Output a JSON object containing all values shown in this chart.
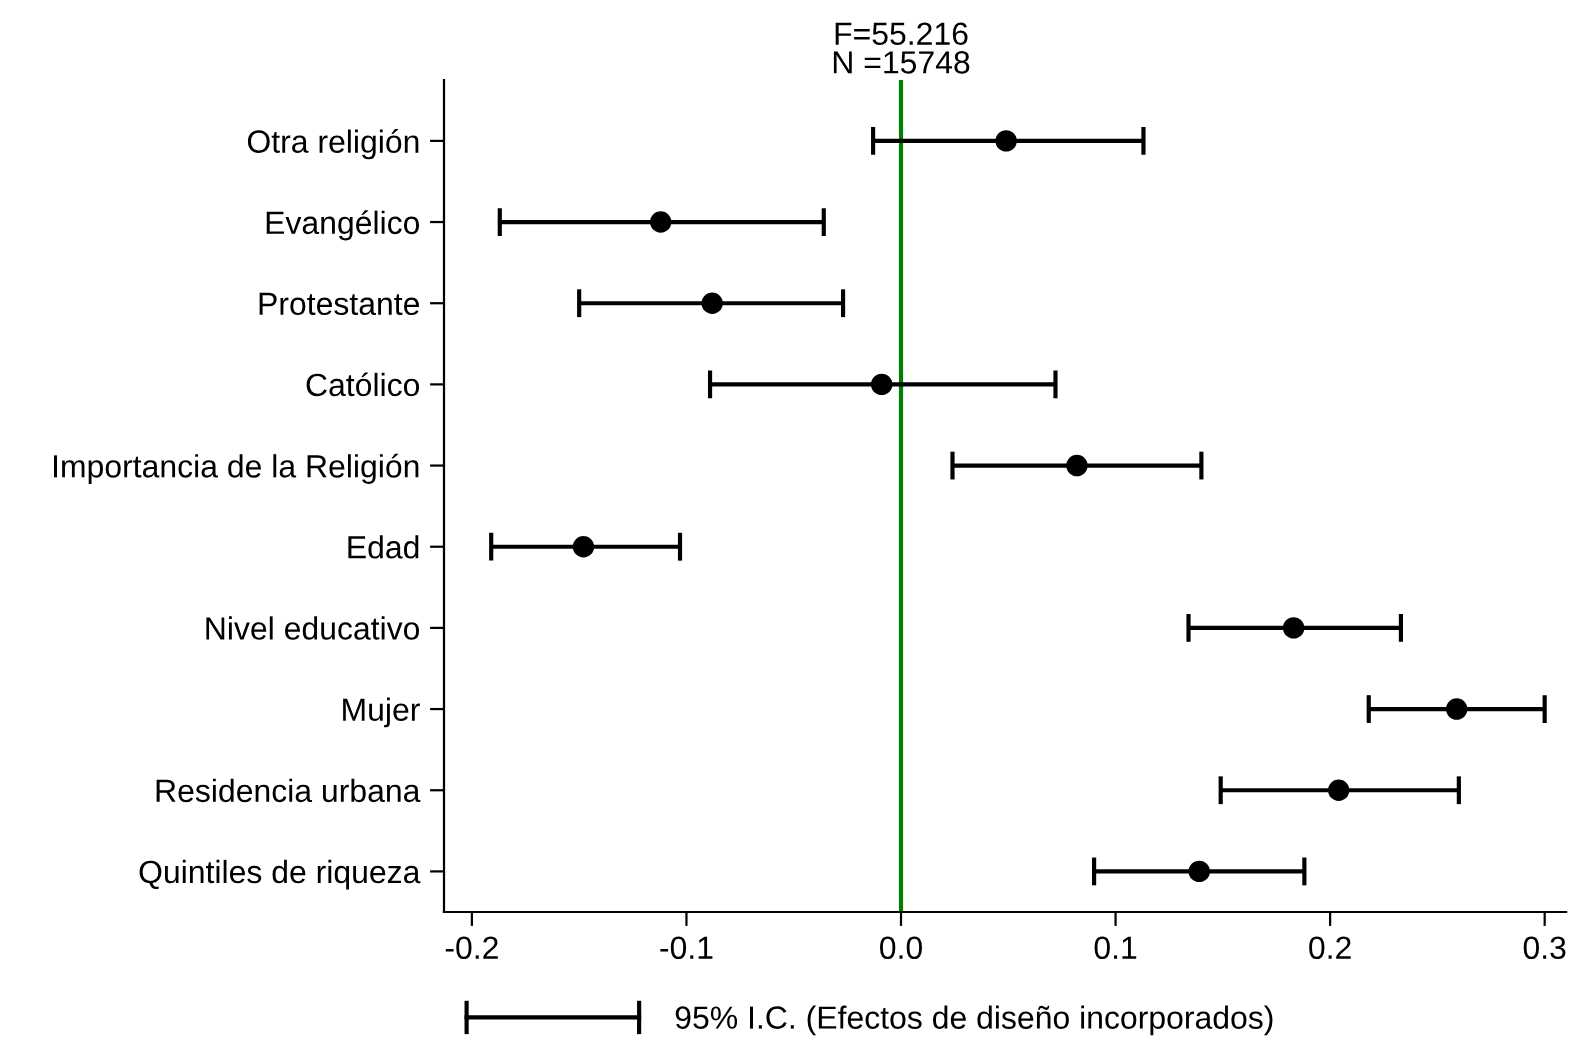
{
  "chart_data": {
    "type": "scatter",
    "orientation": "horizontal",
    "title": "F=55.216",
    "subtitle": "N =15748",
    "categories": [
      "Otra religión",
      "Evangélico",
      "Protestante",
      "Católico",
      "Importancia de la Religión",
      "Edad",
      "Nivel educativo",
      "Mujer",
      "Residencia urbana",
      "Quintiles de riqueza"
    ],
    "series": [
      {
        "name": "95% I.C. (Efectos de diseño incorporados)",
        "color": "#000000",
        "values": [
          0.049,
          -0.112,
          -0.088,
          -0.009,
          0.082,
          -0.148,
          0.183,
          0.259,
          0.204,
          0.139
        ],
        "errors": [
          [
            -0.013,
            0.113
          ],
          [
            -0.187,
            -0.036
          ],
          [
            -0.15,
            -0.027
          ],
          [
            -0.089,
            0.072
          ],
          [
            0.024,
            0.14
          ],
          [
            -0.191,
            -0.103
          ],
          [
            0.134,
            0.233
          ],
          [
            0.218,
            0.3
          ],
          [
            0.149,
            0.26
          ],
          [
            0.09,
            0.188
          ]
        ]
      }
    ],
    "xlim": [
      -0.213,
      0.31
    ],
    "xticks": [
      -0.2,
      -0.1,
      {
        "value": 0,
        "label": "0.0"
      },
      0.1,
      0.2,
      0.3
    ],
    "ref_lines": [
      {
        "axis": "x",
        "value": 0,
        "color": "#008000"
      }
    ],
    "marker": "circle",
    "legend": "bottom",
    "grid": false
  }
}
